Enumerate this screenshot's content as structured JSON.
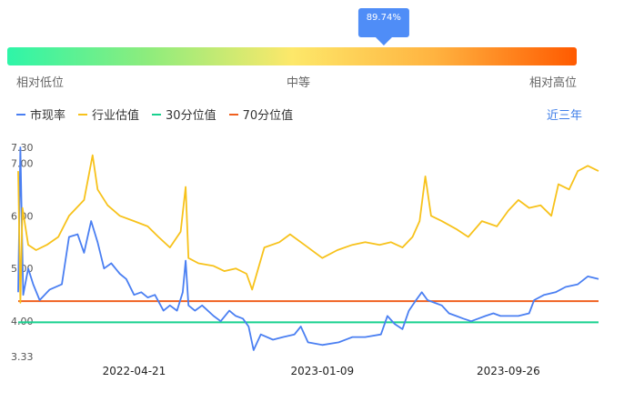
{
  "gauge": {
    "percentile": 0.8974,
    "tooltip_text": "89.74%",
    "label_low": "相对低位",
    "label_mid": "中等",
    "label_high": "相对高位"
  },
  "legend": {
    "items": [
      {
        "label": "市现率",
        "color": "#4a7ff2"
      },
      {
        "label": "行业估值",
        "color": "#f7c21b"
      },
      {
        "label": "30分位值",
        "color": "#19d18f"
      },
      {
        "label": "70分位值",
        "color": "#f0601f"
      }
    ]
  },
  "range_selector": {
    "label": "近三年"
  },
  "chart_data": {
    "type": "line",
    "x_range": [
      "2021-11-10",
      "2024-01-30"
    ],
    "x_ticks": [
      {
        "date": "2022-04-21",
        "label": "2022-04-21"
      },
      {
        "date": "2023-01-09",
        "label": "2023-01-09"
      },
      {
        "date": "2023-09-26",
        "label": "2023-09-26"
      }
    ],
    "y_ticks": [
      {
        "value": 7.3,
        "label": "7.30"
      },
      {
        "value": 7.0,
        "label": "7.00"
      },
      {
        "value": 6.0,
        "label": "6.00"
      },
      {
        "value": 5.0,
        "label": "5.00"
      },
      {
        "value": 4.0,
        "label": "4.00"
      },
      {
        "value": 3.33,
        "label": "3.33"
      }
    ],
    "ylim": [
      3.33,
      7.3
    ],
    "reference_lines": [
      {
        "name": "30分位值",
        "value": 3.98,
        "color": "#19d18f"
      },
      {
        "name": "70分位值",
        "value": 4.38,
        "color": "#f0601f"
      }
    ],
    "series": [
      {
        "name": "市现率",
        "color": "#4a7ff2",
        "points": [
          [
            "2021-11-10",
            4.55
          ],
          [
            "2021-11-13",
            7.3
          ],
          [
            "2021-11-17",
            4.5
          ],
          [
            "2021-11-24",
            5.0
          ],
          [
            "2021-12-01",
            4.7
          ],
          [
            "2021-12-10",
            4.4
          ],
          [
            "2021-12-24",
            4.6
          ],
          [
            "2022-01-10",
            4.7
          ],
          [
            "2022-01-20",
            5.6
          ],
          [
            "2022-02-01",
            5.65
          ],
          [
            "2022-02-10",
            5.3
          ],
          [
            "2022-02-20",
            5.9
          ],
          [
            "2022-03-01",
            5.5
          ],
          [
            "2022-03-10",
            5.0
          ],
          [
            "2022-03-20",
            5.1
          ],
          [
            "2022-04-01",
            4.9
          ],
          [
            "2022-04-10",
            4.8
          ],
          [
            "2022-04-21",
            4.5
          ],
          [
            "2022-05-01",
            4.55
          ],
          [
            "2022-05-10",
            4.45
          ],
          [
            "2022-05-20",
            4.5
          ],
          [
            "2022-06-01",
            4.2
          ],
          [
            "2022-06-10",
            4.3
          ],
          [
            "2022-06-20",
            4.2
          ],
          [
            "2022-06-28",
            4.55
          ],
          [
            "2022-07-02",
            5.15
          ],
          [
            "2022-07-06",
            4.3
          ],
          [
            "2022-07-15",
            4.2
          ],
          [
            "2022-07-25",
            4.3
          ],
          [
            "2022-08-10",
            4.1
          ],
          [
            "2022-08-20",
            4.0
          ],
          [
            "2022-09-01",
            4.2
          ],
          [
            "2022-09-10",
            4.1
          ],
          [
            "2022-09-20",
            4.05
          ],
          [
            "2022-09-28",
            3.9
          ],
          [
            "2022-10-05",
            3.45
          ],
          [
            "2022-10-15",
            3.75
          ],
          [
            "2022-11-01",
            3.65
          ],
          [
            "2022-11-15",
            3.7
          ],
          [
            "2022-12-01",
            3.75
          ],
          [
            "2022-12-10",
            3.9
          ],
          [
            "2022-12-20",
            3.6
          ],
          [
            "2023-01-09",
            3.55
          ],
          [
            "2023-02-01",
            3.6
          ],
          [
            "2023-02-20",
            3.7
          ],
          [
            "2023-03-10",
            3.7
          ],
          [
            "2023-04-01",
            3.75
          ],
          [
            "2023-04-10",
            4.1
          ],
          [
            "2023-04-20",
            3.95
          ],
          [
            "2023-05-01",
            3.85
          ],
          [
            "2023-05-10",
            4.2
          ],
          [
            "2023-05-20",
            4.4
          ],
          [
            "2023-05-28",
            4.55
          ],
          [
            "2023-06-05",
            4.4
          ],
          [
            "2023-06-15",
            4.35
          ],
          [
            "2023-06-25",
            4.3
          ],
          [
            "2023-07-05",
            4.15
          ],
          [
            "2023-07-15",
            4.1
          ],
          [
            "2023-07-25",
            4.05
          ],
          [
            "2023-08-05",
            4.0
          ],
          [
            "2023-08-15",
            4.05
          ],
          [
            "2023-08-25",
            4.1
          ],
          [
            "2023-09-05",
            4.15
          ],
          [
            "2023-09-15",
            4.1
          ],
          [
            "2023-09-26",
            4.1
          ],
          [
            "2023-10-10",
            4.1
          ],
          [
            "2023-10-25",
            4.15
          ],
          [
            "2023-11-01",
            4.4
          ],
          [
            "2023-11-15",
            4.5
          ],
          [
            "2023-12-01",
            4.55
          ],
          [
            "2023-12-15",
            4.65
          ],
          [
            "2024-01-01",
            4.7
          ],
          [
            "2024-01-15",
            4.85
          ],
          [
            "2024-01-30",
            4.8
          ]
        ]
      },
      {
        "name": "行业估值",
        "color": "#f7c21b",
        "points": [
          [
            "2021-11-10",
            6.85
          ],
          [
            "2021-11-13",
            4.35
          ],
          [
            "2021-11-16",
            6.15
          ],
          [
            "2021-11-24",
            5.45
          ],
          [
            "2021-12-05",
            5.35
          ],
          [
            "2021-12-20",
            5.45
          ],
          [
            "2022-01-05",
            5.6
          ],
          [
            "2022-01-20",
            6.0
          ],
          [
            "2022-02-10",
            6.3
          ],
          [
            "2022-02-22",
            7.15
          ],
          [
            "2022-03-01",
            6.5
          ],
          [
            "2022-03-15",
            6.2
          ],
          [
            "2022-04-01",
            6.0
          ],
          [
            "2022-04-21",
            5.9
          ],
          [
            "2022-05-10",
            5.8
          ],
          [
            "2022-05-25",
            5.6
          ],
          [
            "2022-06-10",
            5.4
          ],
          [
            "2022-06-25",
            5.7
          ],
          [
            "2022-07-02",
            6.55
          ],
          [
            "2022-07-06",
            5.2
          ],
          [
            "2022-07-20",
            5.1
          ],
          [
            "2022-08-10",
            5.05
          ],
          [
            "2022-08-25",
            4.95
          ],
          [
            "2022-09-10",
            5.0
          ],
          [
            "2022-09-25",
            4.9
          ],
          [
            "2022-10-03",
            4.6
          ],
          [
            "2022-10-20",
            5.4
          ],
          [
            "2022-11-10",
            5.5
          ],
          [
            "2022-11-25",
            5.65
          ],
          [
            "2022-12-15",
            5.45
          ],
          [
            "2023-01-09",
            5.2
          ],
          [
            "2023-01-30",
            5.35
          ],
          [
            "2023-02-20",
            5.45
          ],
          [
            "2023-03-10",
            5.5
          ],
          [
            "2023-03-30",
            5.45
          ],
          [
            "2023-04-15",
            5.5
          ],
          [
            "2023-05-01",
            5.4
          ],
          [
            "2023-05-15",
            5.6
          ],
          [
            "2023-05-25",
            5.9
          ],
          [
            "2023-06-02",
            6.75
          ],
          [
            "2023-06-10",
            6.0
          ],
          [
            "2023-06-25",
            5.9
          ],
          [
            "2023-07-15",
            5.75
          ],
          [
            "2023-08-01",
            5.6
          ],
          [
            "2023-08-20",
            5.9
          ],
          [
            "2023-09-10",
            5.8
          ],
          [
            "2023-09-26",
            6.1
          ],
          [
            "2023-10-10",
            6.3
          ],
          [
            "2023-10-25",
            6.15
          ],
          [
            "2023-11-10",
            6.2
          ],
          [
            "2023-11-25",
            6.0
          ],
          [
            "2023-12-05",
            6.6
          ],
          [
            "2023-12-20",
            6.5
          ],
          [
            "2024-01-01",
            6.85
          ],
          [
            "2024-01-15",
            6.95
          ],
          [
            "2024-01-30",
            6.85
          ]
        ]
      }
    ]
  }
}
